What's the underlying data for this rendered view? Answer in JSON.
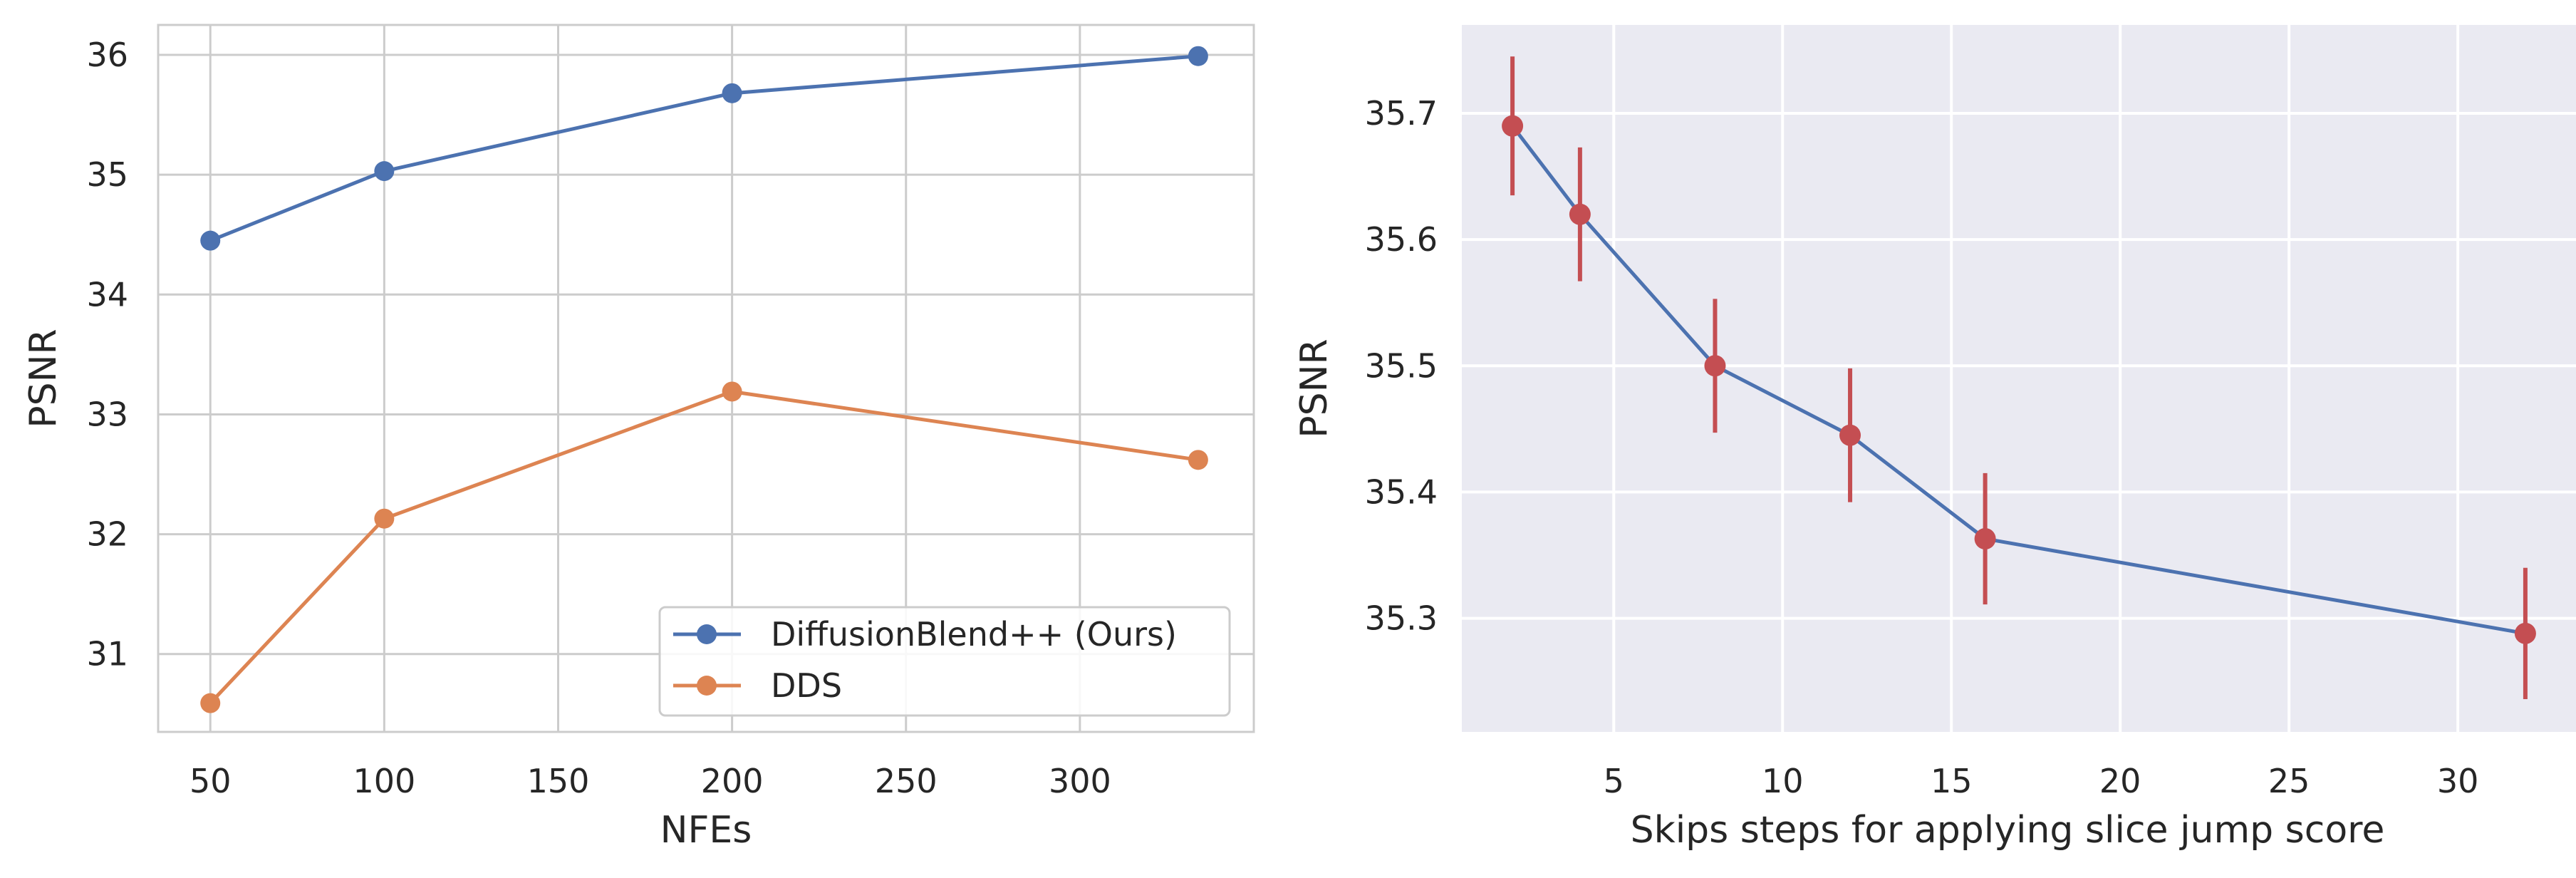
{
  "chart_data": [
    {
      "type": "line",
      "xlabel": "NFEs",
      "ylabel": "PSNR",
      "xlim": [
        35,
        350
      ],
      "ylim": [
        30.35,
        36.25
      ],
      "xticks": [
        50,
        100,
        150,
        200,
        250,
        300
      ],
      "yticks": [
        31,
        32,
        33,
        34,
        35,
        36
      ],
      "grid": true,
      "legend_position": "lower-right",
      "series": [
        {
          "name": "DiffusionBlend++ (Ours)",
          "color": "#4c72b0",
          "marker": "circle",
          "x": [
            50,
            100,
            200,
            334
          ],
          "y": [
            34.45,
            35.03,
            35.68,
            35.99
          ]
        },
        {
          "name": "DDS",
          "color": "#dd8452",
          "marker": "circle",
          "x": [
            50,
            100,
            200,
            334
          ],
          "y": [
            30.59,
            32.13,
            33.19,
            32.62
          ]
        }
      ]
    },
    {
      "type": "line",
      "xlabel": "Skips steps for applying slice jump score",
      "ylabel": "PSNR",
      "xlim": [
        0.5,
        33.5
      ],
      "ylim": [
        35.21,
        35.77
      ],
      "xticks": [
        5,
        10,
        15,
        20,
        25,
        30
      ],
      "yticks": [
        35.3,
        35.4,
        35.5,
        35.6,
        35.7
      ],
      "grid": true,
      "line_color": "#4c72b0",
      "marker_color": "#c44e52",
      "errorbar_color": "#c44e52",
      "series": [
        {
          "x": [
            2,
            4,
            8,
            12,
            16,
            32
          ],
          "y": [
            35.69,
            35.62,
            35.5,
            35.445,
            35.363,
            35.288
          ],
          "error": [
            0.055,
            0.053,
            0.053,
            0.053,
            0.052,
            0.052
          ]
        }
      ]
    }
  ]
}
